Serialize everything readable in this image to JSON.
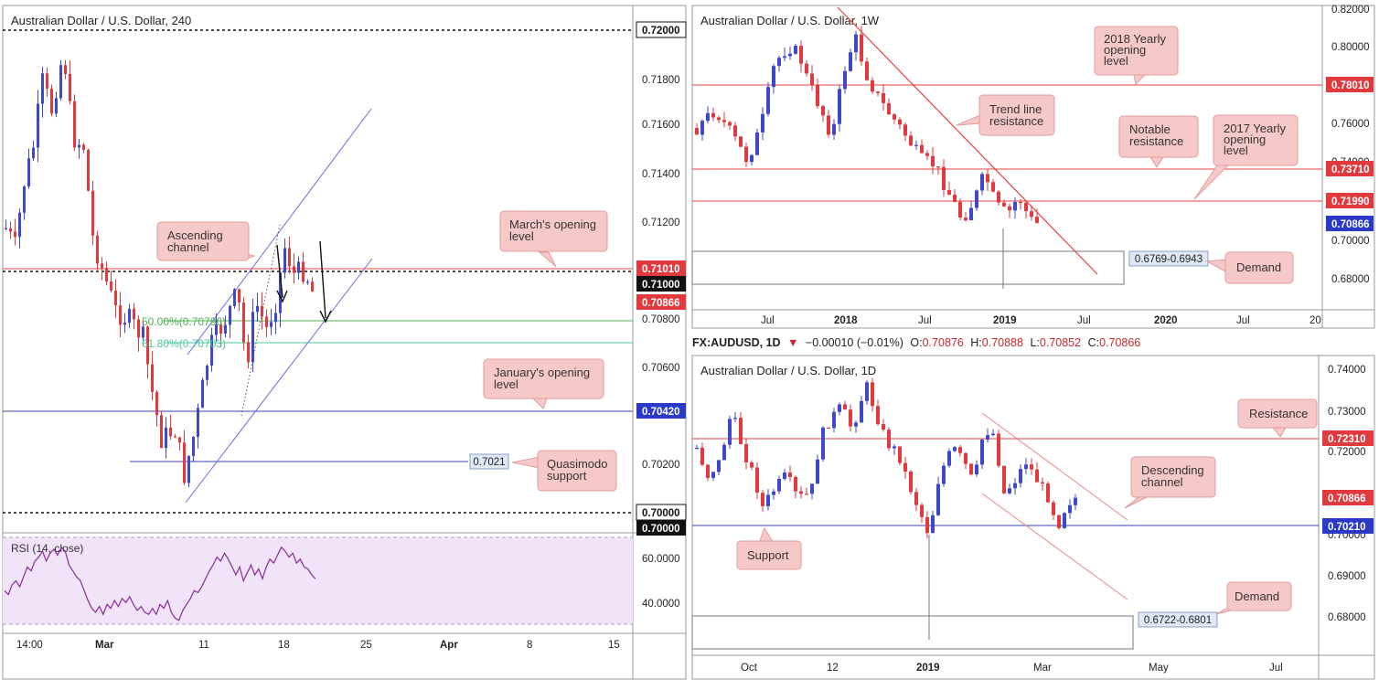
{
  "left_panel": {
    "title": "Australian Dollar / U.S. Dollar, 240",
    "price_axis": [
      "0.71800",
      "0.71600",
      "0.71400",
      "0.71200",
      "0.70800",
      "0.70600",
      "0.70200"
    ],
    "price_tags": [
      {
        "label": "0.72000",
        "style": "black-outline"
      },
      {
        "label": "0.71010",
        "style": "red"
      },
      {
        "label": "0.71000",
        "style": "black"
      },
      {
        "label": "0.70866",
        "style": "red"
      },
      {
        "label": "0.70420",
        "style": "blue"
      },
      {
        "label": "0.70000",
        "style": "black-outline"
      },
      {
        "label": "0.70000",
        "style": "black"
      }
    ],
    "time_axis": [
      "14:00",
      "Mar",
      "11",
      "18",
      "25",
      "Apr",
      "8",
      "15"
    ],
    "callouts": {
      "ascending_channel": "Ascending\nchannel",
      "march_opening": "March's opening\nlevel",
      "january_opening": "January's opening\nlevel",
      "quasimodo": "Quasimodo\nsupport"
    },
    "fib_50": "50.00%(0.70796)",
    "fib_618": "61.80%(0.70703)",
    "quasimodo_tag": "0.7021",
    "rsi": {
      "title": "RSI (14, close)",
      "axis": [
        "60.0000",
        "40.0000"
      ],
      "values": [
        45,
        43,
        48,
        50,
        47,
        52,
        57,
        55,
        60,
        62,
        65,
        60,
        64,
        66,
        63,
        67,
        65,
        58,
        55,
        52,
        50,
        45,
        40,
        36,
        34,
        37,
        33,
        38,
        36,
        40,
        37,
        41,
        39,
        42,
        38,
        35,
        37,
        34,
        33,
        36,
        33,
        38,
        36,
        40,
        34,
        31,
        30,
        35,
        38,
        41,
        45,
        44,
        47,
        51,
        55,
        58,
        62,
        60,
        64,
        61,
        57,
        53,
        57,
        50,
        54,
        58,
        53,
        56,
        51,
        57,
        61,
        59,
        63,
        67,
        65,
        62,
        64,
        59,
        61,
        57,
        56,
        53,
        51
      ]
    },
    "chart_data": {
      "type": "candlestick",
      "title": "Australian Dollar / U.S. Dollar, 240",
      "ylim": [
        0.6998,
        0.7215
      ],
      "levels": [
        {
          "name": "0.72000",
          "value": 0.72
        },
        {
          "name": "March's opening level",
          "value": 0.7101
        },
        {
          "name": "0.71000",
          "value": 0.71
        },
        {
          "name": "Fib 50.00%",
          "value": 0.70796
        },
        {
          "name": "Fib 61.80%",
          "value": 0.70703
        },
        {
          "name": "January's opening level",
          "value": 0.7042
        },
        {
          "name": "Quasimodo support",
          "value": 0.7021
        },
        {
          "name": "0.70000",
          "value": 0.7
        }
      ],
      "last_price": 0.70866
    }
  },
  "weekly_panel": {
    "title": "Australian Dollar / U.S. Dollar, 1W",
    "price_axis": [
      "0.82000",
      "0.80000",
      "0.76000",
      "0.74000",
      "0.70000",
      "0.68000"
    ],
    "price_tags": [
      {
        "label": "0.78010",
        "style": "red"
      },
      {
        "label": "0.73710",
        "style": "red"
      },
      {
        "label": "0.71990",
        "style": "red"
      },
      {
        "label": "0.70866",
        "style": "blue"
      }
    ],
    "time_axis": [
      "Jul",
      "2018",
      "Jul",
      "2019",
      "Jul",
      "2020",
      "Jul",
      "20"
    ],
    "callouts": {
      "yearly_2018": "2018 Yearly\nopening\nlevel",
      "trend_line": "Trend line\nresistance",
      "notable": "Notable\nresistance",
      "yearly_2017": "2017 Yearly\nopening\nlevel",
      "demand": "Demand"
    },
    "demand_tag": "0.6769-0.6943",
    "chart_data": {
      "type": "candlestick",
      "title": "Australian Dollar / U.S. Dollar, 1W",
      "ylim": [
        0.672,
        0.822
      ],
      "levels": [
        {
          "name": "2018 Yearly opening level",
          "value": 0.7801
        },
        {
          "name": "Notable resistance",
          "value": 0.7371
        },
        {
          "name": "2017 Yearly opening level",
          "value": 0.7199
        }
      ],
      "demand_zone": [
        0.6769,
        0.6943
      ],
      "last_price": 0.70866
    }
  },
  "header": {
    "symbol": "FX:AUDUSD, 1D",
    "change_symbol": "▼",
    "change": "−0.00010 (−0.01%)",
    "o_label": "O:",
    "o_value": "0.70876",
    "h_label": "H:",
    "h_value": "0.70888",
    "l_label": "L:",
    "l_value": "0.70852",
    "c_label": "C:",
    "c_value": "0.70866"
  },
  "daily_panel": {
    "title": "Australian Dollar / U.S. Dollar, 1D",
    "price_axis": [
      "0.74000",
      "0.73000",
      "0.72000",
      "0.70000",
      "0.69000",
      "0.68000"
    ],
    "price_tags": [
      {
        "label": "0.72310",
        "style": "red"
      },
      {
        "label": "0.70866",
        "style": "red"
      },
      {
        "label": "0.70210",
        "style": "blue"
      }
    ],
    "time_axis": [
      "Oct",
      "12",
      "2019",
      "Mar",
      "May",
      "Jul"
    ],
    "callouts": {
      "resistance": "Resistance",
      "descending": "Descending\nchannel",
      "support": "Support",
      "demand": "Demand"
    },
    "demand_tag": "0.6722-0.6801",
    "chart_data": {
      "type": "candlestick",
      "title": "Australian Dollar / U.S. Dollar, 1D",
      "ylim": [
        0.6715,
        0.7415
      ],
      "levels": [
        {
          "name": "Resistance",
          "value": 0.7231
        },
        {
          "name": "Support",
          "value": 0.7021
        }
      ],
      "demand_zone": [
        0.6722,
        0.6801
      ],
      "last_price": 0.70866
    }
  },
  "colors": {
    "bull": "#3f48cc",
    "bear": "#e0393e",
    "red_level": "#e84040",
    "blue_level": "#3a3fb0",
    "fib": "#4caf50",
    "callout_fill": "#f6c8c8",
    "callout_stroke": "#e49b9b",
    "rsi_bg": "#f1e3f8",
    "rsi_line": "#8a2a9e"
  }
}
